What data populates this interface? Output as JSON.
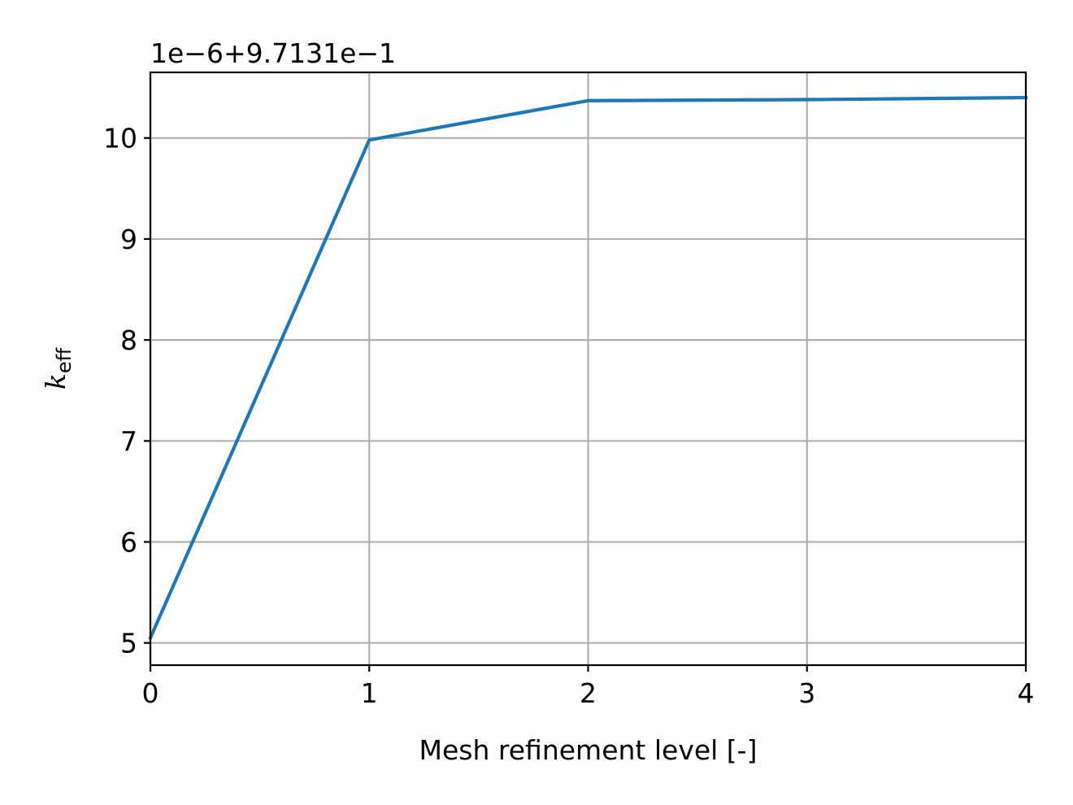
{
  "chart_data": {
    "type": "line",
    "title": "",
    "xlabel": "Mesh refinement level [-]",
    "ylabel_main": "k",
    "ylabel_sub": "eff",
    "offset_text": "1e−6+9.7131e−1",
    "x": [
      0,
      1,
      2,
      3,
      4
    ],
    "series": [
      {
        "values": [
          5.05,
          9.98,
          10.37,
          10.38,
          10.4
        ],
        "color": "#1f77b4"
      }
    ],
    "xlim": [
      0,
      4
    ],
    "ylim": [
      4.78,
      10.65
    ],
    "xticks": [
      0,
      1,
      2,
      3,
      4
    ],
    "xtick_labels": [
      "0",
      "1",
      "2",
      "3",
      "4"
    ],
    "yticks": [
      5,
      6,
      7,
      8,
      9,
      10
    ],
    "ytick_labels": [
      "5",
      "6",
      "7",
      "8",
      "9",
      "10"
    ],
    "grid": true,
    "legend": "none"
  }
}
